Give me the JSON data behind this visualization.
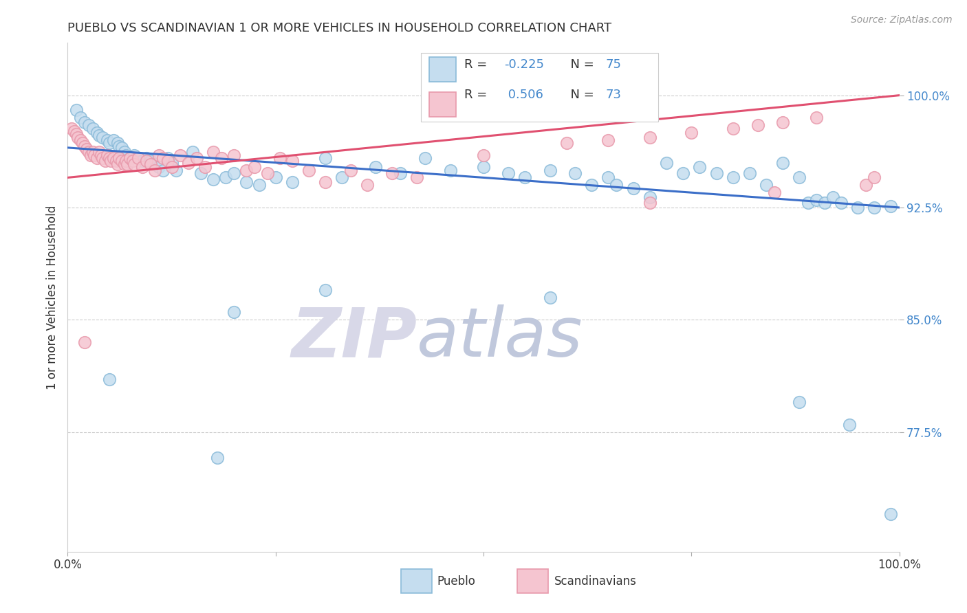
{
  "title": "PUEBLO VS SCANDINAVIAN 1 OR MORE VEHICLES IN HOUSEHOLD CORRELATION CHART",
  "source": "Source: ZipAtlas.com",
  "ylabel": "1 or more Vehicles in Household",
  "legend_blue_label": "Pueblo",
  "legend_pink_label": "Scandinavians",
  "ytick_labels": [
    "100.0%",
    "92.5%",
    "85.0%",
    "77.5%"
  ],
  "ytick_values": [
    1.0,
    0.925,
    0.85,
    0.775
  ],
  "xlim": [
    0.0,
    1.0
  ],
  "ylim": [
    0.695,
    1.035
  ],
  "blue_face_color": "#C5DDEF",
  "blue_edge_color": "#8BBBD9",
  "pink_face_color": "#F5C5D0",
  "pink_edge_color": "#E899AB",
  "blue_line_color": "#3B6EC8",
  "pink_line_color": "#E05070",
  "grid_color": "#CCCCCC",
  "background_color": "#FFFFFF",
  "ytick_color": "#4488CC",
  "watermark_zip_color": "#D8D8E8",
  "watermark_atlas_color": "#C0C8DC"
}
